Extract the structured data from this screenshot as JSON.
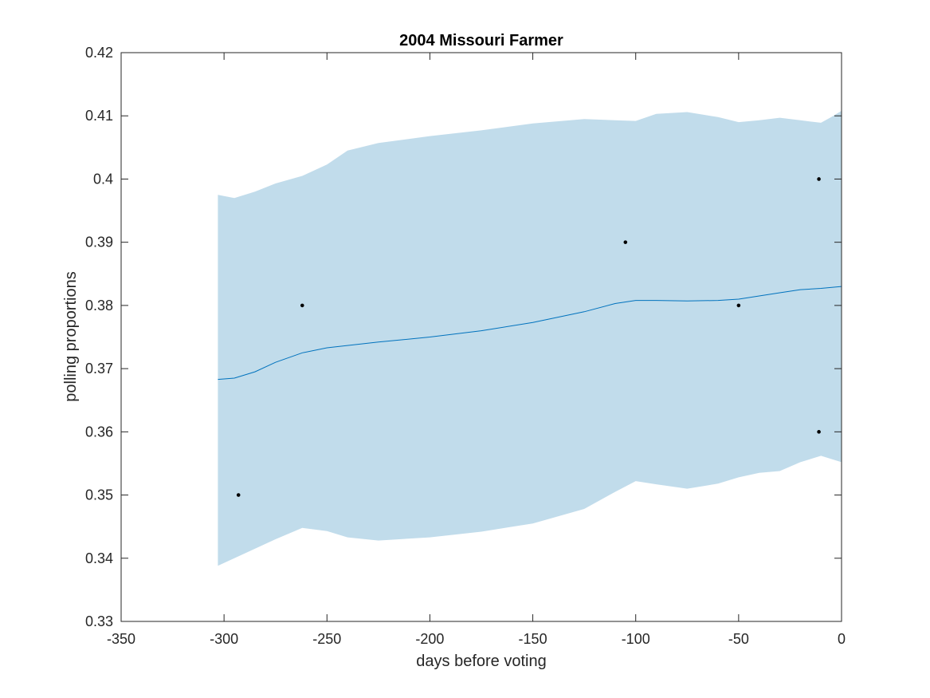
{
  "chart_data": {
    "type": "line",
    "title": "2004 Missouri Farmer",
    "xlabel": "days before voting",
    "ylabel": "polling proportions",
    "xlim": [
      -350,
      0
    ],
    "ylim": [
      0.33,
      0.42
    ],
    "xticks": [
      -350,
      -300,
      -250,
      -200,
      -150,
      -100,
      -50,
      0
    ],
    "xtick_labels": [
      "-350",
      "-300",
      "-250",
      "-200",
      "-150",
      "-100",
      "-50",
      "0"
    ],
    "yticks": [
      0.33,
      0.34,
      0.35,
      0.36,
      0.37,
      0.38,
      0.39,
      0.4,
      0.41,
      0.42
    ],
    "ytick_labels": [
      "0.33",
      "0.34",
      "0.35",
      "0.36",
      "0.37",
      "0.38",
      "0.39",
      "0.4",
      "0.41",
      "0.42"
    ],
    "grid": false,
    "colors": {
      "band": "#c1dceb",
      "line": "#0072bd",
      "points": "#000000",
      "axes": "#262626"
    },
    "band": {
      "x": [
        -303,
        -295,
        -285,
        -275,
        -262,
        -250,
        -240,
        -225,
        -200,
        -175,
        -150,
        -125,
        -110,
        -100,
        -90,
        -75,
        -60,
        -50,
        -40,
        -30,
        -20,
        -10,
        -5,
        0
      ],
      "upper": [
        0.3975,
        0.397,
        0.398,
        0.3993,
        0.4005,
        0.4023,
        0.4045,
        0.4057,
        0.4068,
        0.4077,
        0.4088,
        0.4095,
        0.4093,
        0.4092,
        0.4103,
        0.4106,
        0.4098,
        0.409,
        0.4093,
        0.4097,
        0.4093,
        0.4089,
        0.4098,
        0.4108
      ],
      "lower": [
        0.3388,
        0.34,
        0.3415,
        0.343,
        0.3448,
        0.3443,
        0.3433,
        0.3428,
        0.3433,
        0.3442,
        0.3455,
        0.3478,
        0.3505,
        0.3522,
        0.3517,
        0.351,
        0.3518,
        0.3528,
        0.3535,
        0.3538,
        0.3552,
        0.3562,
        0.3557,
        0.3552
      ]
    },
    "series": [
      {
        "type": "line",
        "x": [
          -303,
          -295,
          -285,
          -275,
          -262,
          -250,
          -225,
          -200,
          -175,
          -150,
          -125,
          -110,
          -100,
          -90,
          -75,
          -60,
          -50,
          -40,
          -30,
          -20,
          -10,
          0
        ],
        "values": [
          0.3683,
          0.3685,
          0.3695,
          0.371,
          0.3725,
          0.3733,
          0.3742,
          0.375,
          0.376,
          0.3773,
          0.379,
          0.3803,
          0.3808,
          0.3808,
          0.3807,
          0.3808,
          0.381,
          0.3815,
          0.382,
          0.3825,
          0.3827,
          0.383
        ]
      },
      {
        "type": "scatter",
        "x": [
          -293,
          -262,
          -105,
          -50,
          -11,
          -11
        ],
        "values": [
          0.35,
          0.38,
          0.39,
          0.38,
          0.4,
          0.36
        ]
      }
    ]
  }
}
